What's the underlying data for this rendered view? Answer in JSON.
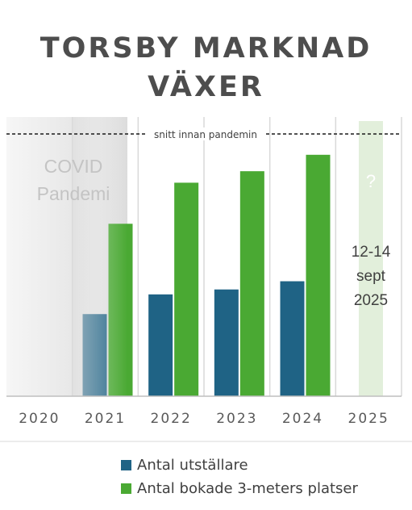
{
  "title_lines": [
    "TORSBY MARKNAD",
    "VÄXER"
  ],
  "chart_data": {
    "type": "bar",
    "categories": [
      "2020",
      "2021",
      "2022",
      "2023",
      "2024",
      "2025"
    ],
    "series": [
      {
        "name": "Antal utställare",
        "color": "#1f6385",
        "values": [
          null,
          100,
          124,
          130,
          140,
          null
        ]
      },
      {
        "name": "Antal bokade 3-meters platser",
        "color": "#4aa933",
        "values": [
          null,
          210,
          260,
          274,
          294,
          null
        ]
      }
    ],
    "reference_line": {
      "label": "snitt innan pandemin",
      "value": 325
    },
    "annotations": {
      "covid": [
        "COVID",
        "Pandemi"
      ],
      "question": "?",
      "date": [
        "12-14",
        "sept",
        "2025"
      ]
    },
    "ylim": [
      0,
      340
    ],
    "legend_position": "bottom",
    "grid": true
  }
}
